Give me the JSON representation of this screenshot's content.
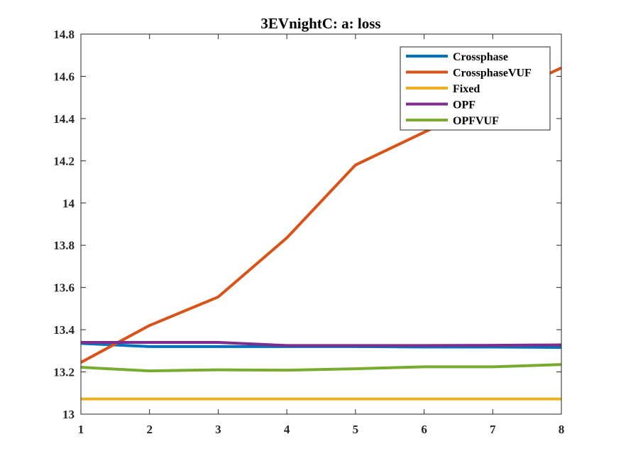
{
  "chart_data": {
    "type": "line",
    "title": "3EVnightC: a: loss",
    "xlabel": "",
    "ylabel": "",
    "x": [
      1,
      2,
      3,
      4,
      5,
      6,
      7,
      8
    ],
    "xlim": [
      1,
      8
    ],
    "ylim": [
      13,
      14.8
    ],
    "xticks": [
      "1",
      "2",
      "3",
      "4",
      "5",
      "6",
      "7",
      "8"
    ],
    "yticks": [
      "13",
      "13.2",
      "13.4",
      "13.6",
      "13.8",
      "14",
      "14.2",
      "14.4",
      "14.6",
      "14.8"
    ],
    "grid": false,
    "legend_position": "top-right",
    "series": [
      {
        "name": "Crossphase",
        "color": "#0072BD",
        "values": [
          13.335,
          13.32,
          13.32,
          13.32,
          13.32,
          13.318,
          13.318,
          13.316
        ]
      },
      {
        "name": "CrossphaseVUF",
        "color": "#D95319",
        "values": [
          13.245,
          13.42,
          13.555,
          13.835,
          14.18,
          14.335,
          14.49,
          14.64
        ]
      },
      {
        "name": "Fixed",
        "color": "#EDB120",
        "values": [
          13.072,
          13.072,
          13.072,
          13.072,
          13.072,
          13.072,
          13.072,
          13.072
        ]
      },
      {
        "name": "OPF",
        "color": "#7E2F8E",
        "values": [
          13.34,
          13.34,
          13.34,
          13.325,
          13.325,
          13.325,
          13.326,
          13.328
        ]
      },
      {
        "name": "OPFVUF",
        "color": "#77AC30",
        "values": [
          13.222,
          13.205,
          13.21,
          13.208,
          13.215,
          13.224,
          13.224,
          13.235
        ]
      }
    ]
  }
}
